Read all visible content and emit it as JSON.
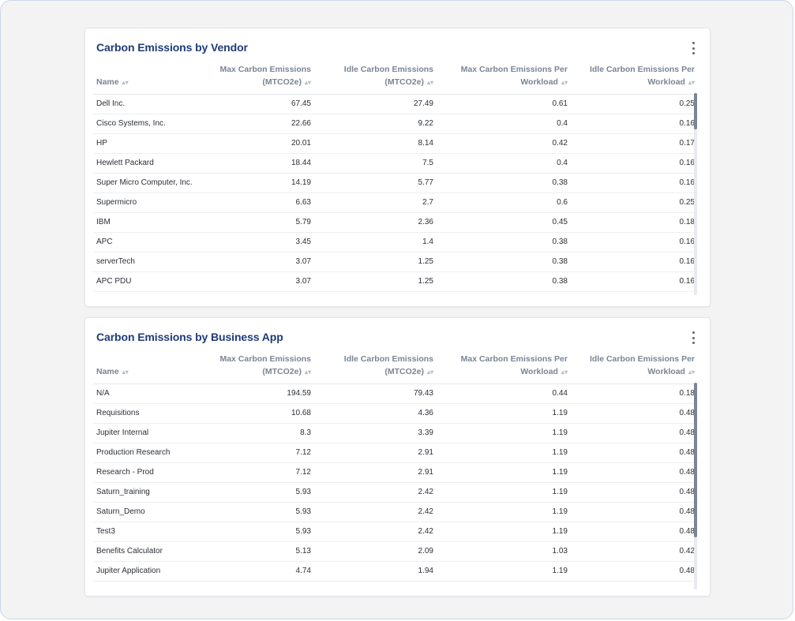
{
  "vendor_panel": {
    "title": "Carbon Emissions by Vendor",
    "columns": {
      "name": "Name",
      "max": "Max Carbon Emissions (MTCO2e)",
      "idle": "Idle Carbon Emissions (MTCO2e)",
      "max_per_workload": "Max Carbon Emissions Per Workload",
      "idle_per_workload": "Idle Carbon Emissions Per Workload"
    },
    "rows": [
      {
        "name": "Dell Inc.",
        "max": "67.45",
        "idle": "27.49",
        "mpw": "0.61",
        "ipw": "0.25"
      },
      {
        "name": "Cisco Systems, Inc.",
        "max": "22.66",
        "idle": "9.22",
        "mpw": "0.4",
        "ipw": "0.16"
      },
      {
        "name": "HP",
        "max": "20.01",
        "idle": "8.14",
        "mpw": "0.42",
        "ipw": "0.17"
      },
      {
        "name": "Hewlett Packard",
        "max": "18.44",
        "idle": "7.5",
        "mpw": "0.4",
        "ipw": "0.16"
      },
      {
        "name": "Super Micro Computer, Inc.",
        "max": "14.19",
        "idle": "5.77",
        "mpw": "0.38",
        "ipw": "0.16"
      },
      {
        "name": "Supermicro",
        "max": "6.63",
        "idle": "2.7",
        "mpw": "0.6",
        "ipw": "0.25"
      },
      {
        "name": "IBM",
        "max": "5.79",
        "idle": "2.36",
        "mpw": "0.45",
        "ipw": "0.18"
      },
      {
        "name": "APC",
        "max": "3.45",
        "idle": "1.4",
        "mpw": "0.38",
        "ipw": "0.16"
      },
      {
        "name": "serverTech",
        "max": "3.07",
        "idle": "1.25",
        "mpw": "0.38",
        "ipw": "0.16"
      },
      {
        "name": "APC PDU",
        "max": "3.07",
        "idle": "1.25",
        "mpw": "0.38",
        "ipw": "0.16"
      }
    ]
  },
  "app_panel": {
    "title": "Carbon Emissions by Business App",
    "columns": {
      "name": "Name",
      "max": "Max Carbon Emissions (MTCO2e)",
      "idle": "Idle Carbon Emissions (MTCO2e)",
      "max_per_workload": "Max Carbon Emissions Per Workload",
      "idle_per_workload": "Idle Carbon Emissions Per Workload"
    },
    "rows": [
      {
        "name": "N/A",
        "max": "194.59",
        "idle": "79.43",
        "mpw": "0.44",
        "ipw": "0.18"
      },
      {
        "name": "Requisitions",
        "max": "10.68",
        "idle": "4.36",
        "mpw": "1.19",
        "ipw": "0.48"
      },
      {
        "name": "Jupiter Internal",
        "max": "8.3",
        "idle": "3.39",
        "mpw": "1.19",
        "ipw": "0.48"
      },
      {
        "name": "Production Research",
        "max": "7.12",
        "idle": "2.91",
        "mpw": "1.19",
        "ipw": "0.48"
      },
      {
        "name": "Research - Prod",
        "max": "7.12",
        "idle": "2.91",
        "mpw": "1.19",
        "ipw": "0.48"
      },
      {
        "name": "Saturn_training",
        "max": "5.93",
        "idle": "2.42",
        "mpw": "1.19",
        "ipw": "0.48"
      },
      {
        "name": "Saturn_Demo",
        "max": "5.93",
        "idle": "2.42",
        "mpw": "1.19",
        "ipw": "0.48"
      },
      {
        "name": "Test3",
        "max": "5.93",
        "idle": "2.42",
        "mpw": "1.19",
        "ipw": "0.48"
      },
      {
        "name": "Benefits Calculator",
        "max": "5.13",
        "idle": "2.09",
        "mpw": "1.03",
        "ipw": "0.42"
      },
      {
        "name": "Jupiter Application",
        "max": "4.74",
        "idle": "1.94",
        "mpw": "1.19",
        "ipw": "0.48"
      }
    ]
  },
  "icons": {
    "menu": "more-vertical-icon",
    "sort": "sort-icon"
  },
  "colors": {
    "title": "#1f3b77",
    "header_text": "#7a8594",
    "scroll_thumb": "#7b8593"
  }
}
